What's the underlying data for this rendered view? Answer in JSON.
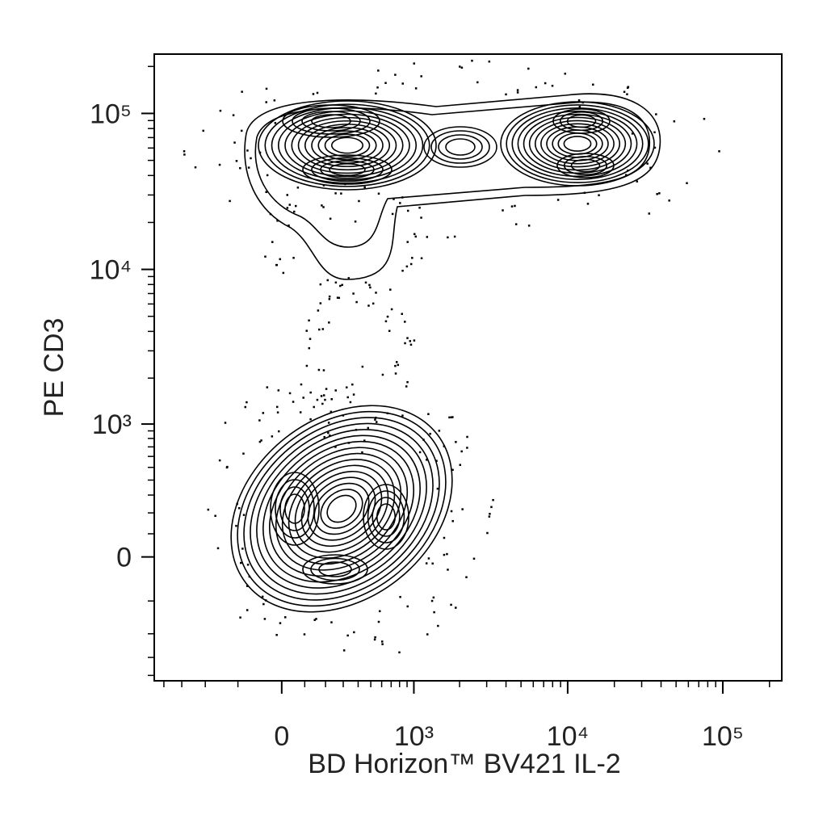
{
  "chart_data": {
    "type": "contour",
    "x_label": "BD Horizon™ BV421 IL-2",
    "y_label": "PE CD3",
    "xscale": "biexponential",
    "yscale": "biexponential",
    "xlim": [
      -930,
      240000
    ],
    "ylim": [
      -870,
      240000
    ],
    "xticks": [
      0,
      {
        "value": 1000,
        "label": "10³"
      },
      {
        "value": 10000,
        "label": "10⁴"
      },
      {
        "value": 100000,
        "label": "10⁵"
      }
    ],
    "yticks": [
      0,
      {
        "value": 1000,
        "label": "10³"
      },
      {
        "value": 10000,
        "label": "10⁴"
      },
      {
        "value": 100000,
        "label": "10⁵"
      }
    ],
    "xminorticks": [
      -800,
      -600,
      -400,
      -200,
      100,
      200,
      300,
      400,
      500,
      600,
      700,
      800,
      900,
      2000,
      3000,
      4000,
      5000,
      6000,
      7000,
      8000,
      9000,
      20000,
      30000,
      40000,
      50000,
      60000,
      70000,
      80000,
      90000,
      200000
    ],
    "yminorticks": [
      -800,
      -600,
      -400,
      -200,
      100,
      200,
      300,
      400,
      500,
      600,
      700,
      800,
      900,
      2000,
      3000,
      4000,
      5000,
      6000,
      7000,
      8000,
      9000,
      20000,
      30000,
      40000,
      50000,
      60000,
      70000,
      80000,
      90000,
      200000
    ],
    "color": "#000000"
  }
}
